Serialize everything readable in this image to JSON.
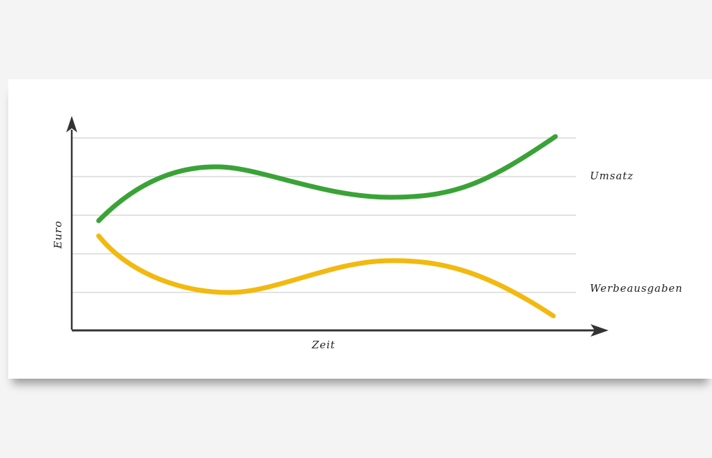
{
  "axes": {
    "y_label": "Euro",
    "x_label": "Zeit"
  },
  "series": [
    {
      "label": "Umsatz"
    },
    {
      "label": "Werbeausgaben"
    }
  ]
}
